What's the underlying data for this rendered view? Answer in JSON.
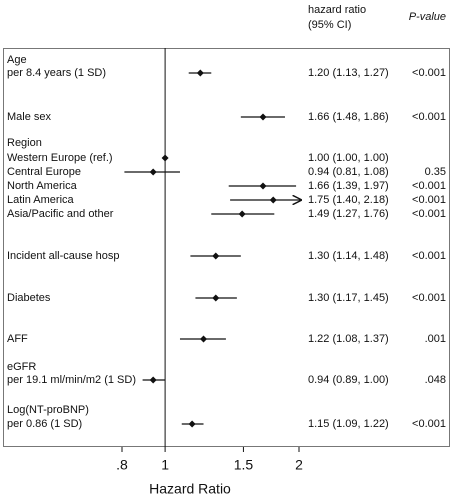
{
  "chart_data": {
    "type": "forest",
    "header_estimate": "hazard ratio",
    "header_ci": "(95% CI)",
    "header_p": "P-value",
    "x_label": "Hazard Ratio",
    "log_x": true,
    "xlim": [
      0.8,
      2
    ],
    "xticks": [
      {
        "value": 0.8,
        "label": ".8"
      },
      1,
      1.5,
      2
    ],
    "reference": 1,
    "rows": [
      {
        "label": "Age",
        "sublabel": "per 8.4 years (1 SD)",
        "hr": 1.2,
        "lo": 1.13,
        "hi": 1.27,
        "ci_label": "1.20 (1.13, 1.27)",
        "p": "<0.001"
      },
      {
        "label": "Male sex",
        "hr": 1.66,
        "lo": 1.48,
        "hi": 1.86,
        "ci_label": "1.66 (1.48, 1.86)",
        "p": "<0.001"
      },
      {
        "label": "Region"
      },
      {
        "label": "Western Europe (ref.)",
        "hr": 1.0,
        "lo": 1.0,
        "hi": 1.0,
        "ci_label": "1.00 (1.00, 1.00)"
      },
      {
        "label": "Central Europe",
        "hr": 0.94,
        "lo": 0.81,
        "hi": 1.08,
        "ci_label": "0.94 (0.81, 1.08)",
        "p": "0.35"
      },
      {
        "label": "North America",
        "hr": 1.66,
        "lo": 1.39,
        "hi": 1.97,
        "ci_label": "1.66 (1.39, 1.97)",
        "p": "<0.001"
      },
      {
        "label": "Latin America",
        "hr": 1.75,
        "lo": 1.4,
        "hi": 2.18,
        "ci_label": "1.75 (1.40, 2.18)",
        "p": "<0.001"
      },
      {
        "label": "Asia/Pacific and other",
        "hr": 1.49,
        "lo": 1.27,
        "hi": 1.76,
        "ci_label": "1.49 (1.27, 1.76)",
        "p": "<0.001"
      },
      {
        "label": "Incident all-cause hosp",
        "hr": 1.3,
        "lo": 1.14,
        "hi": 1.48,
        "ci_label": "1.30 (1.14, 1.48)",
        "p": "<0.001"
      },
      {
        "label": "Diabetes",
        "hr": 1.3,
        "lo": 1.17,
        "hi": 1.45,
        "ci_label": "1.30 (1.17, 1.45)",
        "p": "<0.001"
      },
      {
        "label": "AFF",
        "hr": 1.22,
        "lo": 1.08,
        "hi": 1.37,
        "ci_label": "1.22 (1.08, 1.37)",
        "p": ".001"
      },
      {
        "label": "eGFR",
        "sublabel": "per 19.1 ml/min/m2 (1 SD)",
        "hr": 0.94,
        "lo": 0.89,
        "hi": 1.0,
        "ci_label": "0.94 (0.89, 1.00)",
        "p": ".048"
      },
      {
        "label": "Log(NT-proBNP)",
        "sublabel": "per 0.86 (1 SD)",
        "hr": 1.15,
        "lo": 1.09,
        "hi": 1.22,
        "ci_label": "1.15 (1.09, 1.22)",
        "p": "<0.001"
      }
    ]
  }
}
